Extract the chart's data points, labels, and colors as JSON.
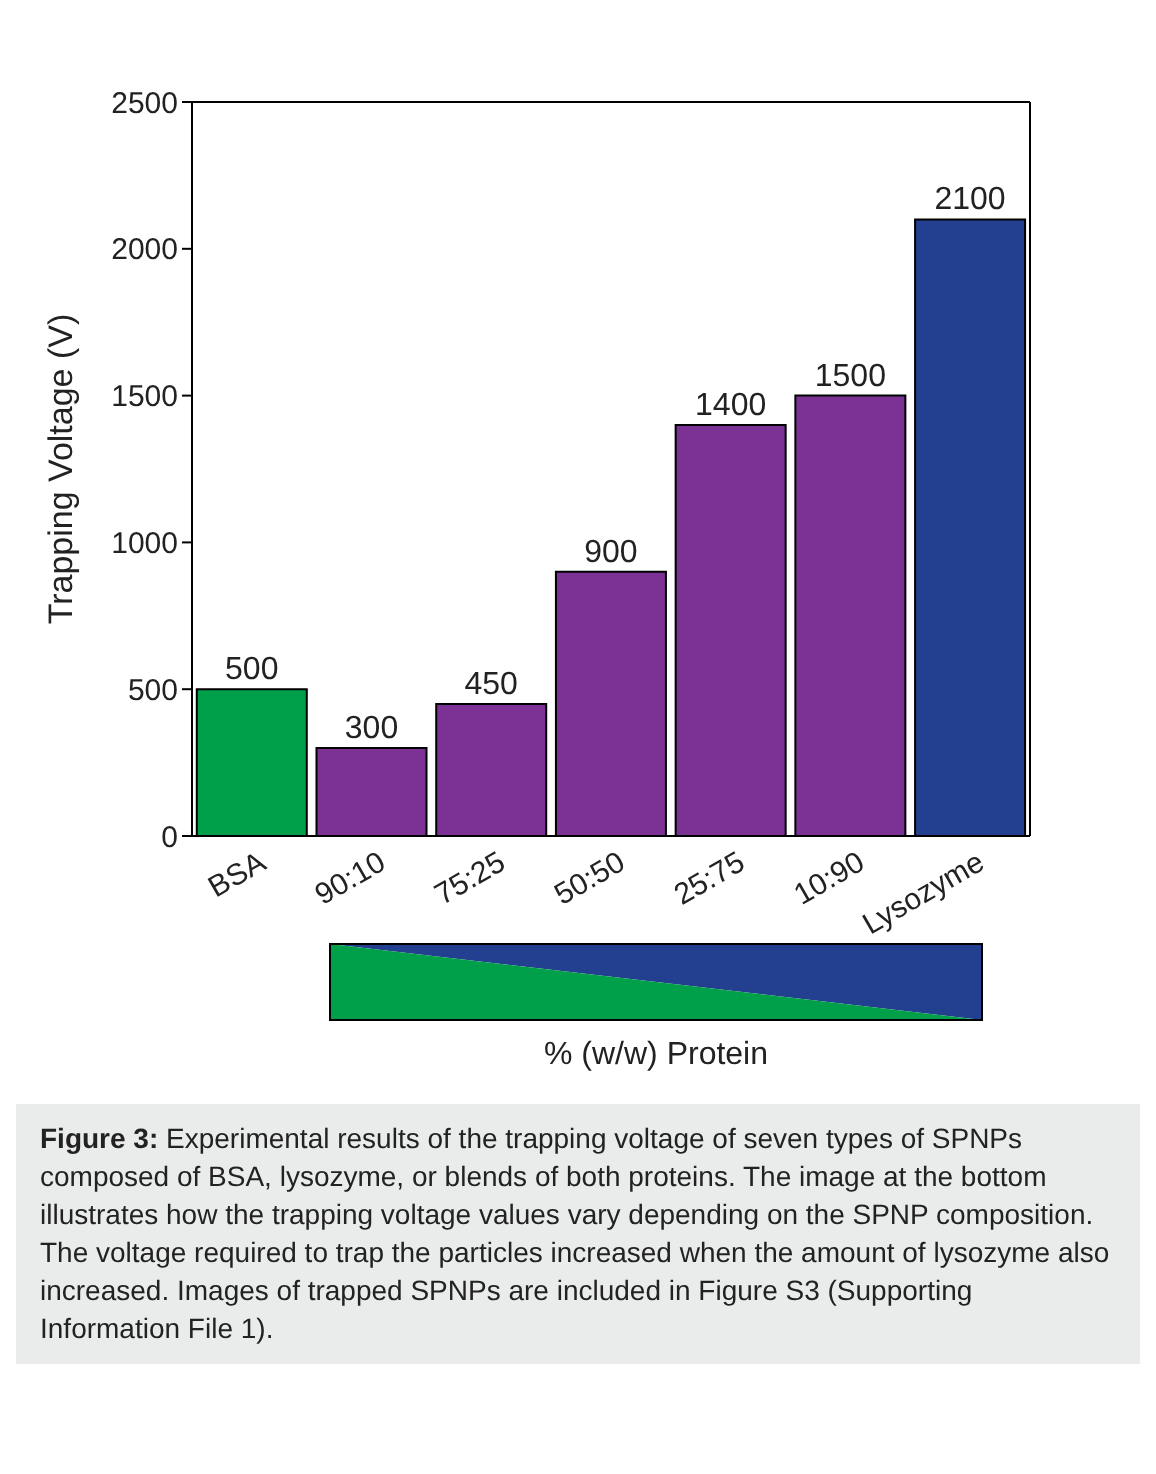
{
  "chart_data": {
    "type": "bar",
    "ylabel": "Trapping Voltage (V)",
    "xlabel": "% (w/w) Protein",
    "categories": [
      "BSA",
      "90:10",
      "75:25",
      "50:50",
      "25:75",
      "10:90",
      "Lysozyme"
    ],
    "values": [
      500,
      300,
      450,
      900,
      1400,
      1500,
      2100
    ],
    "colors": [
      "#00a04b",
      "#7b3294",
      "#7b3294",
      "#7b3294",
      "#7b3294",
      "#7b3294",
      "#233f8f"
    ],
    "ylim": [
      0,
      2500
    ],
    "yticks": [
      0,
      500,
      1000,
      1500,
      2000,
      2500
    ],
    "data_labels": true,
    "grid": false,
    "annotations": [
      "Figure 3:",
      "Experimental results of the trapping voltage of seven types of SPNPs composed of BSA, lysozyme, or blends of both proteins. The image at the bottom illustrates how the trapping voltage values vary depending on the SPNP composition. The voltage required to trap the particles increased when the amount of lysozyme also increased. Images of trapped SPNPs are included in Figure S3 (Supporting Information File 1)."
    ]
  }
}
